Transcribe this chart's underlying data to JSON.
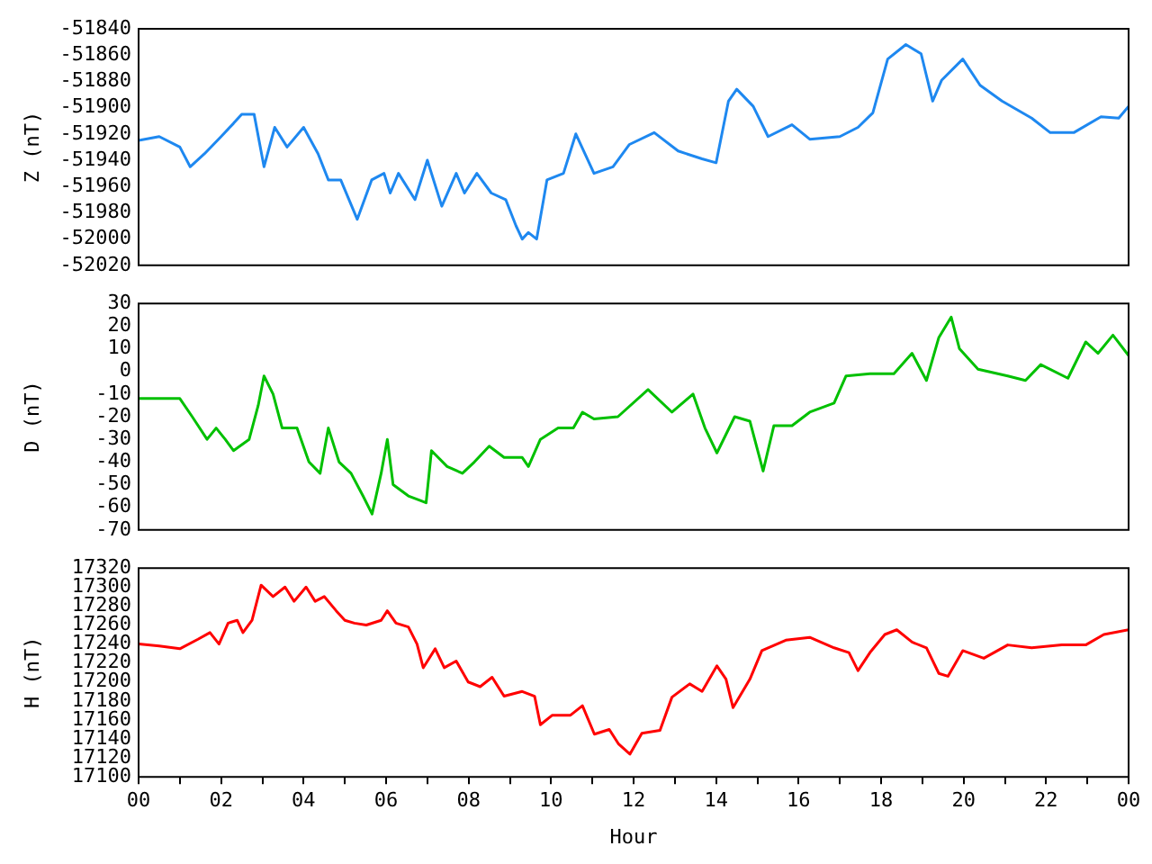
{
  "chart_data": [
    {
      "type": "line",
      "ylabel": "Z (nT)",
      "xlim": [
        0,
        24
      ],
      "ylim": [
        -52020,
        -51840
      ],
      "yticks": [
        -52020,
        -52000,
        -51980,
        -51960,
        -51940,
        -51920,
        -51900,
        -51880,
        -51860,
        -51840
      ],
      "tick_labels": "y",
      "x": [
        0,
        0.5,
        1,
        1.25,
        1.6,
        2,
        2.3,
        2.5,
        2.8,
        3.04,
        3.3,
        3.6,
        4,
        4.35,
        4.6,
        4.9,
        5.3,
        5.65,
        5.95,
        6.1,
        6.3,
        6.7,
        7,
        7.35,
        7.7,
        7.9,
        8.2,
        8.55,
        8.9,
        9.15,
        9.3,
        9.45,
        9.65,
        9.9,
        10.3,
        10.6,
        11.04,
        11.5,
        11.9,
        12.5,
        13.08,
        13.66,
        14,
        14.3,
        14.5,
        14.9,
        15.26,
        15.84,
        16.27,
        17,
        17.44,
        17.8,
        18.16,
        18.6,
        18.97,
        19.25,
        19.47,
        19.98,
        20.4,
        20.93,
        21.65,
        22.1,
        22.67,
        23.33,
        23.76,
        24
      ],
      "series": [
        {
          "color": "#1e88f0",
          "values": [
            -51925,
            -51922,
            -51930,
            -51945,
            -51935,
            -51922,
            -51912,
            -51905,
            -51905,
            -51945,
            -51915,
            -51930,
            -51915,
            -51935,
            -51955,
            -51955,
            -51985,
            -51955,
            -51950,
            -51965,
            -51950,
            -51970,
            -51940,
            -51975,
            -51950,
            -51965,
            -51950,
            -51965,
            -51970,
            -51990,
            -52000,
            -51995,
            -52000,
            -51955,
            -51950,
            -51920,
            -51950,
            -51945,
            -51928,
            -51919,
            -51933,
            -51939,
            -51942,
            -51895,
            -51886,
            -51899,
            -51922,
            -51913,
            -51924,
            -51922,
            -51915,
            -51904,
            -51863,
            -51852,
            -51859,
            -51895,
            -51879,
            -51863,
            -51883,
            -51895,
            -51908,
            -51919,
            -51919,
            -51907,
            -51908,
            -51899
          ]
        }
      ]
    },
    {
      "type": "line",
      "ylabel": "D (nT)",
      "xlim": [
        0,
        24
      ],
      "ylim": [
        -70,
        30
      ],
      "yticks": [
        -70,
        -60,
        -50,
        -40,
        -30,
        -20,
        -10,
        0,
        10,
        20,
        30
      ],
      "tick_labels": "y",
      "x": [
        0,
        0.5,
        1,
        1.3,
        1.66,
        1.88,
        2.1,
        2.3,
        2.68,
        2.9,
        3.04,
        3.26,
        3.48,
        3.84,
        4.13,
        4.4,
        4.6,
        4.86,
        5.15,
        5.44,
        5.66,
        5.88,
        6.03,
        6.17,
        6.54,
        6.83,
        6.97,
        7.1,
        7.48,
        7.85,
        8.14,
        8.5,
        8.86,
        9.3,
        9.45,
        9.74,
        10.17,
        10.54,
        10.76,
        11.04,
        11.62,
        12.35,
        12.93,
        13.44,
        13.73,
        14.02,
        14.45,
        14.82,
        15.14,
        15.4,
        15.84,
        16.27,
        16.86,
        17.15,
        17.73,
        18.31,
        18.75,
        19.1,
        19.4,
        19.7,
        19.9,
        20.35,
        21.07,
        21.5,
        21.87,
        22.53,
        22.96,
        23.26,
        23.62,
        24
      ],
      "series": [
        {
          "color": "#00c000",
          "values": [
            -12,
            -12,
            -12,
            -20,
            -30,
            -25,
            -30,
            -35,
            -30,
            -15,
            -2,
            -10,
            -25,
            -25,
            -40,
            -45,
            -25,
            -40,
            -45,
            -55,
            -63,
            -45,
            -30,
            -50,
            -55,
            -57,
            -58,
            -35,
            -42,
            -45,
            -40,
            -33,
            -38,
            -38,
            -42,
            -30,
            -25,
            -25,
            -18,
            -21,
            -20,
            -8,
            -18,
            -10,
            -25,
            -36,
            -20,
            -22,
            -44,
            -24,
            -24,
            -18,
            -14,
            -2,
            -1,
            -1,
            8,
            -4,
            15,
            24,
            10,
            1,
            -2,
            -4,
            3,
            -3,
            13,
            8,
            16,
            7
          ]
        }
      ]
    },
    {
      "type": "line",
      "xlabel": "Hour",
      "ylabel": "H (nT)",
      "xlim": [
        0,
        24
      ],
      "xticks": [
        {
          "value": 0,
          "label": "00"
        },
        {
          "value": 1,
          "label": null
        },
        {
          "value": 2,
          "label": "02"
        },
        {
          "value": 3,
          "label": null
        },
        {
          "value": 4,
          "label": "04"
        },
        {
          "value": 5,
          "label": null
        },
        {
          "value": 6,
          "label": "06"
        },
        {
          "value": 7,
          "label": null
        },
        {
          "value": 8,
          "label": "08"
        },
        {
          "value": 9,
          "label": null
        },
        {
          "value": 10,
          "label": "10"
        },
        {
          "value": 11,
          "label": null
        },
        {
          "value": 12,
          "label": "12"
        },
        {
          "value": 13,
          "label": null
        },
        {
          "value": 14,
          "label": "14"
        },
        {
          "value": 15,
          "label": null
        },
        {
          "value": 16,
          "label": "16"
        },
        {
          "value": 17,
          "label": null
        },
        {
          "value": 18,
          "label": "18"
        },
        {
          "value": 19,
          "label": null
        },
        {
          "value": 20,
          "label": "20"
        },
        {
          "value": 21,
          "label": null
        },
        {
          "value": 22,
          "label": "22"
        },
        {
          "value": 23,
          "label": null
        },
        {
          "value": 24,
          "label": "00"
        }
      ],
      "ylim": [
        17100,
        17320
      ],
      "yticks": [
        17100,
        17120,
        17140,
        17160,
        17180,
        17200,
        17220,
        17240,
        17260,
        17280,
        17300,
        17320
      ],
      "x": [
        0,
        0.5,
        1,
        1.44,
        1.73,
        1.95,
        2.17,
        2.39,
        2.53,
        2.75,
        2.97,
        3.26,
        3.55,
        3.77,
        4.06,
        4.28,
        4.5,
        4.79,
        5,
        5.23,
        5.52,
        5.88,
        6.03,
        6.24,
        6.54,
        6.75,
        6.9,
        7.19,
        7.41,
        7.7,
        7.99,
        8.28,
        8.57,
        8.86,
        9.3,
        9.6,
        9.74,
        10.03,
        10.47,
        10.76,
        11.05,
        11.41,
        11.63,
        11.91,
        12.2,
        12.64,
        12.93,
        13.36,
        13.66,
        14.02,
        14.24,
        14.41,
        14.82,
        15.11,
        15.69,
        16.27,
        16.86,
        17.22,
        17.44,
        17.73,
        18.09,
        18.38,
        18.75,
        19.1,
        19.4,
        19.62,
        19.98,
        20.49,
        21.07,
        21.65,
        22.38,
        22.96,
        23.4,
        24
      ],
      "series": [
        {
          "color": "#ff0000",
          "values": [
            17240,
            17238,
            17235,
            17245,
            17252,
            17240,
            17262,
            17265,
            17252,
            17265,
            17302,
            17290,
            17300,
            17285,
            17300,
            17285,
            17290,
            17275,
            17265,
            17262,
            17260,
            17265,
            17275,
            17262,
            17258,
            17240,
            17215,
            17235,
            17215,
            17222,
            17200,
            17195,
            17205,
            17185,
            17190,
            17185,
            17155,
            17165,
            17165,
            17175,
            17145,
            17150,
            17135,
            17124,
            17146,
            17149,
            17184,
            17198,
            17190,
            17217,
            17203,
            17173,
            17203,
            17233,
            17244,
            17247,
            17236,
            17231,
            17212,
            17231,
            17250,
            17255,
            17242,
            17236,
            17209,
            17206,
            17233,
            17225,
            17239,
            17236,
            17239,
            17239,
            17250,
            17255
          ]
        }
      ]
    }
  ]
}
